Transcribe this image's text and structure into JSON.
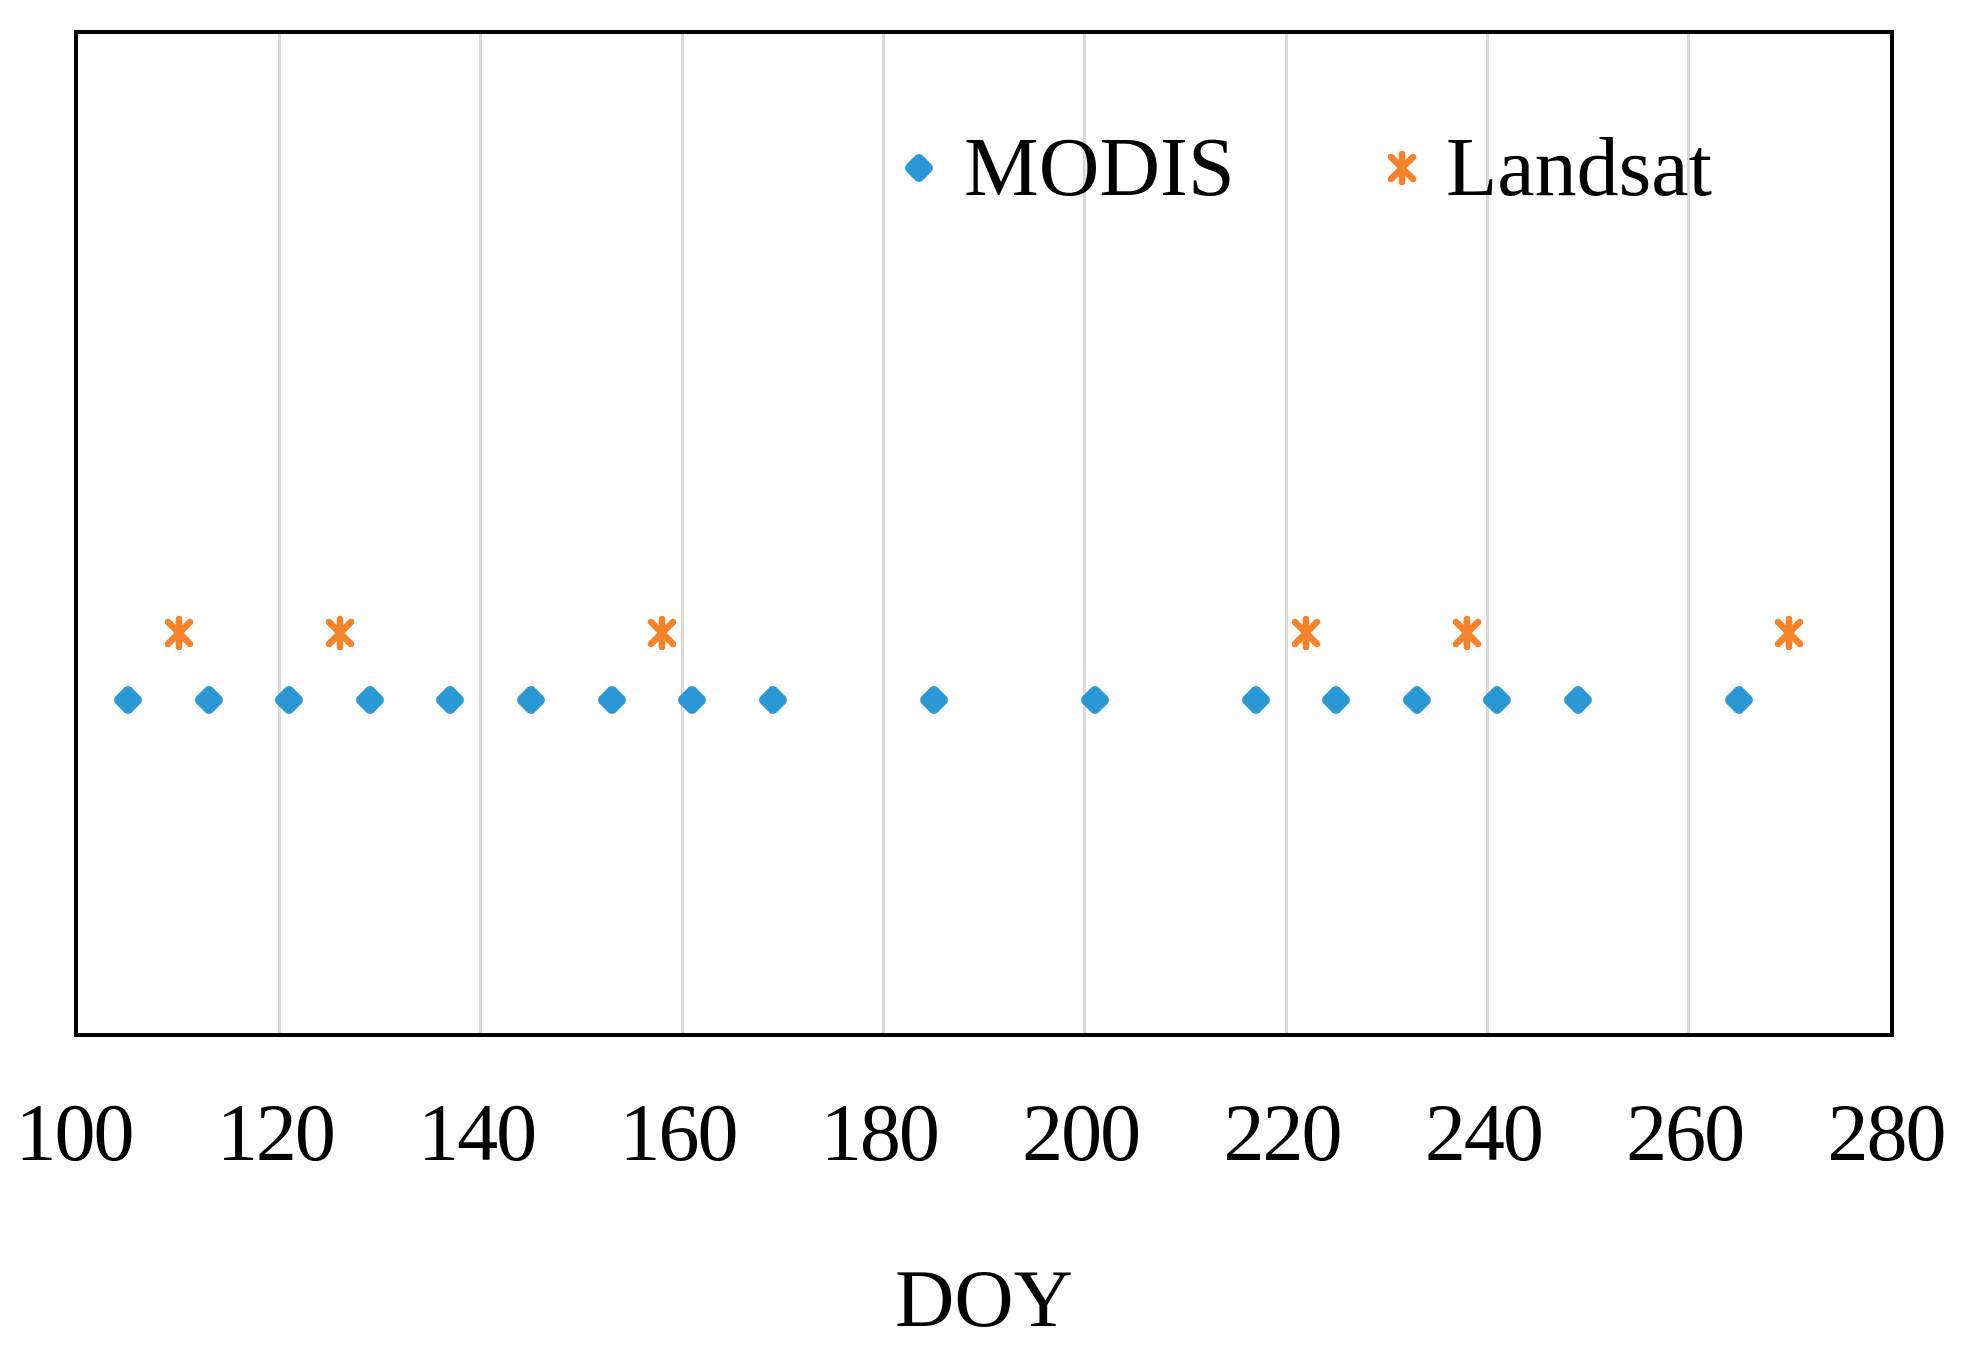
{
  "figure": {
    "background": "#FFFFFF",
    "axis_border_color": "#000000",
    "gridline_color": "#D9D9D9"
  },
  "legend": {
    "items": [
      {
        "label": "MODIS",
        "marker": "diamond-icon",
        "color": "#2B98D6"
      },
      {
        "label": "Landsat",
        "marker": "star-x-icon",
        "color": "#F6822A"
      }
    ]
  },
  "x_axis": {
    "title": "DOY",
    "tick_labels": [
      "100",
      "120",
      "140",
      "160",
      "180",
      "200",
      "220",
      "240",
      "260",
      "280"
    ]
  },
  "chart_data": {
    "type": "scatter",
    "title": "",
    "xlabel": "DOY",
    "ylabel": "",
    "xlim": [
      100,
      280
    ],
    "x_tick_interval": 20,
    "ylim": [
      0,
      3
    ],
    "grid": "vertical-only",
    "legend_position": "inside-top-center",
    "series": [
      {
        "name": "MODIS",
        "marker": "diamond",
        "color": "#2B98D6",
        "y_level": 1.0,
        "x": [
          105,
          113,
          121,
          129,
          137,
          145,
          153,
          161,
          169,
          185,
          201,
          217,
          225,
          233,
          241,
          249,
          265
        ]
      },
      {
        "name": "Landsat",
        "marker": "star-x",
        "color": "#F6822A",
        "y_level": 1.2,
        "x": [
          110,
          126,
          158,
          222,
          238,
          270
        ]
      }
    ]
  }
}
